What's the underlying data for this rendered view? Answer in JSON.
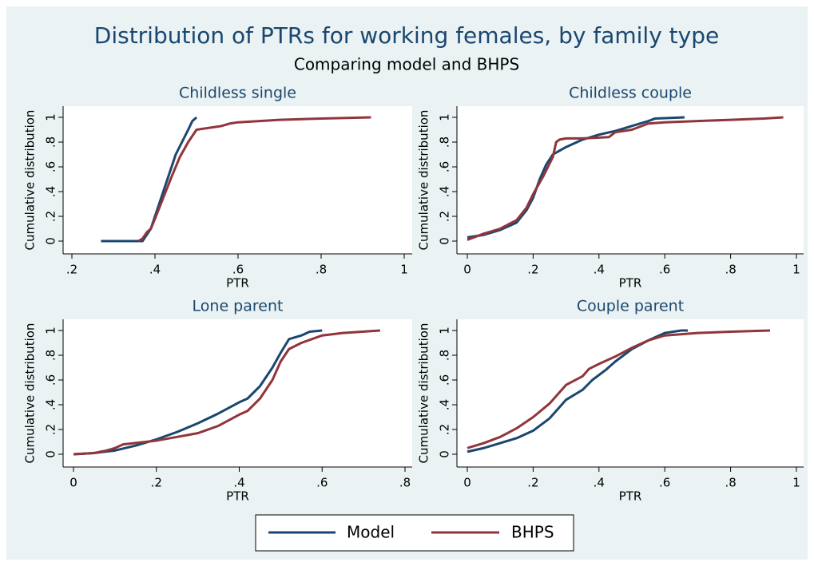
{
  "title": "Distribution of PTRs for working females, by family type",
  "subtitle": "Comparing model and BHPS",
  "chart_data": [
    {
      "type": "line",
      "title": "Childless single",
      "x_label": "PTR",
      "y_label": "Cumulative distribution",
      "xlim": [
        0.2,
        1
      ],
      "xticks": [
        {
          "value": 0.2,
          "label": ".2"
        },
        {
          "value": 0.4,
          "label": ".4"
        },
        {
          "value": 0.6,
          "label": ".6"
        },
        {
          "value": 0.8,
          "label": ".8"
        },
        1
      ],
      "ylim": [
        0,
        1
      ],
      "yticks": [
        0,
        {
          "value": 0.2,
          "label": ".2"
        },
        {
          "value": 0.4,
          "label": ".4"
        },
        {
          "value": 0.6,
          "label": ".6"
        },
        {
          "value": 0.8,
          "label": ".8"
        },
        1
      ],
      "series": [
        {
          "name": "Model",
          "color": "#1a476f",
          "x": [
            0.27,
            0.37,
            0.38,
            0.39,
            0.4,
            0.41,
            0.42,
            0.43,
            0.44,
            0.45,
            0.465,
            0.48,
            0.49,
            0.5
          ],
          "values": [
            0,
            0,
            0.05,
            0.1,
            0.2,
            0.3,
            0.4,
            0.5,
            0.6,
            0.7,
            0.8,
            0.9,
            0.97,
            1.0
          ]
        },
        {
          "name": "BHPS",
          "color": "#90353b",
          "x": [
            0.36,
            0.37,
            0.38,
            0.39,
            0.4,
            0.42,
            0.44,
            0.46,
            0.48,
            0.5,
            0.52,
            0.56,
            0.58,
            0.6,
            0.7,
            0.8,
            0.92
          ],
          "values": [
            0,
            0.02,
            0.07,
            0.1,
            0.18,
            0.35,
            0.52,
            0.68,
            0.8,
            0.9,
            0.91,
            0.93,
            0.95,
            0.96,
            0.98,
            0.99,
            1.0
          ]
        }
      ]
    },
    {
      "type": "line",
      "title": "Childless couple",
      "x_label": "PTR",
      "y_label": "Cumulative distribution",
      "xlim": [
        0,
        1
      ],
      "xticks": [
        0,
        {
          "value": 0.2,
          "label": ".2"
        },
        {
          "value": 0.4,
          "label": ".4"
        },
        {
          "value": 0.6,
          "label": ".6"
        },
        {
          "value": 0.8,
          "label": ".8"
        },
        1
      ],
      "ylim": [
        0,
        1
      ],
      "yticks": [
        0,
        {
          "value": 0.2,
          "label": ".2"
        },
        {
          "value": 0.4,
          "label": ".4"
        },
        {
          "value": 0.6,
          "label": ".6"
        },
        {
          "value": 0.8,
          "label": ".8"
        },
        1
      ],
      "series": [
        {
          "name": "Model",
          "color": "#1a476f",
          "x": [
            0,
            0.05,
            0.1,
            0.15,
            0.18,
            0.2,
            0.22,
            0.24,
            0.26,
            0.28,
            0.3,
            0.35,
            0.4,
            0.45,
            0.5,
            0.55,
            0.57,
            0.66
          ],
          "values": [
            0.03,
            0.05,
            0.09,
            0.15,
            0.25,
            0.35,
            0.5,
            0.62,
            0.7,
            0.73,
            0.76,
            0.82,
            0.86,
            0.89,
            0.93,
            0.97,
            0.99,
            1.0
          ]
        },
        {
          "name": "BHPS",
          "color": "#90353b",
          "x": [
            0,
            0.05,
            0.1,
            0.15,
            0.18,
            0.2,
            0.23,
            0.26,
            0.27,
            0.28,
            0.3,
            0.35,
            0.43,
            0.45,
            0.5,
            0.55,
            0.6,
            0.7,
            0.8,
            0.9,
            0.96
          ],
          "values": [
            0.01,
            0.06,
            0.1,
            0.17,
            0.27,
            0.38,
            0.52,
            0.68,
            0.8,
            0.82,
            0.83,
            0.83,
            0.84,
            0.88,
            0.9,
            0.95,
            0.96,
            0.97,
            0.98,
            0.99,
            1.0
          ]
        }
      ]
    },
    {
      "type": "line",
      "title": "Lone parent",
      "x_label": "PTR",
      "y_label": "Cumulative distribution",
      "xlim": [
        0,
        0.8
      ],
      "xticks": [
        0,
        {
          "value": 0.2,
          "label": ".2"
        },
        {
          "value": 0.4,
          "label": ".4"
        },
        {
          "value": 0.6,
          "label": ".6"
        },
        {
          "value": 0.8,
          "label": ".8"
        }
      ],
      "ylim": [
        0,
        1
      ],
      "yticks": [
        0,
        {
          "value": 0.2,
          "label": ".2"
        },
        {
          "value": 0.4,
          "label": ".4"
        },
        {
          "value": 0.6,
          "label": ".6"
        },
        {
          "value": 0.8,
          "label": ".8"
        },
        1
      ],
      "series": [
        {
          "name": "Model",
          "color": "#1a476f",
          "x": [
            0,
            0.05,
            0.1,
            0.15,
            0.2,
            0.25,
            0.3,
            0.35,
            0.4,
            0.42,
            0.45,
            0.48,
            0.5,
            0.52,
            0.55,
            0.57,
            0.6
          ],
          "values": [
            0,
            0.01,
            0.03,
            0.07,
            0.12,
            0.18,
            0.25,
            0.33,
            0.42,
            0.45,
            0.55,
            0.7,
            0.82,
            0.93,
            0.96,
            0.99,
            1.0
          ]
        },
        {
          "name": "BHPS",
          "color": "#90353b",
          "x": [
            0,
            0.05,
            0.08,
            0.1,
            0.12,
            0.2,
            0.25,
            0.3,
            0.35,
            0.4,
            0.42,
            0.45,
            0.48,
            0.5,
            0.52,
            0.55,
            0.6,
            0.65,
            0.74
          ],
          "values": [
            0,
            0.01,
            0.03,
            0.05,
            0.08,
            0.11,
            0.14,
            0.17,
            0.23,
            0.32,
            0.35,
            0.45,
            0.6,
            0.75,
            0.85,
            0.9,
            0.96,
            0.98,
            1.0
          ]
        }
      ]
    },
    {
      "type": "line",
      "title": "Couple parent",
      "x_label": "PTR",
      "y_label": "Cumulative distribution",
      "xlim": [
        0,
        1
      ],
      "xticks": [
        0,
        {
          "value": 0.2,
          "label": ".2"
        },
        {
          "value": 0.4,
          "label": ".4"
        },
        {
          "value": 0.6,
          "label": ".6"
        },
        {
          "value": 0.8,
          "label": ".8"
        },
        1
      ],
      "ylim": [
        0,
        1
      ],
      "yticks": [
        0,
        {
          "value": 0.2,
          "label": ".2"
        },
        {
          "value": 0.4,
          "label": ".4"
        },
        {
          "value": 0.6,
          "label": ".6"
        },
        {
          "value": 0.8,
          "label": ".8"
        },
        1
      ],
      "series": [
        {
          "name": "Model",
          "color": "#1a476f",
          "x": [
            0,
            0.05,
            0.1,
            0.15,
            0.2,
            0.25,
            0.28,
            0.3,
            0.35,
            0.38,
            0.42,
            0.45,
            0.5,
            0.55,
            0.6,
            0.65,
            0.67
          ],
          "values": [
            0.02,
            0.05,
            0.09,
            0.13,
            0.19,
            0.29,
            0.38,
            0.44,
            0.52,
            0.6,
            0.68,
            0.75,
            0.85,
            0.92,
            0.98,
            1.0,
            1.0
          ]
        },
        {
          "name": "BHPS",
          "color": "#90353b",
          "x": [
            0,
            0.05,
            0.1,
            0.15,
            0.2,
            0.25,
            0.28,
            0.3,
            0.35,
            0.37,
            0.4,
            0.45,
            0.5,
            0.55,
            0.6,
            0.7,
            0.8,
            0.92
          ],
          "values": [
            0.05,
            0.09,
            0.14,
            0.21,
            0.3,
            0.41,
            0.5,
            0.56,
            0.63,
            0.69,
            0.73,
            0.79,
            0.86,
            0.92,
            0.96,
            0.98,
            0.99,
            1.0
          ]
        }
      ]
    }
  ]
}
